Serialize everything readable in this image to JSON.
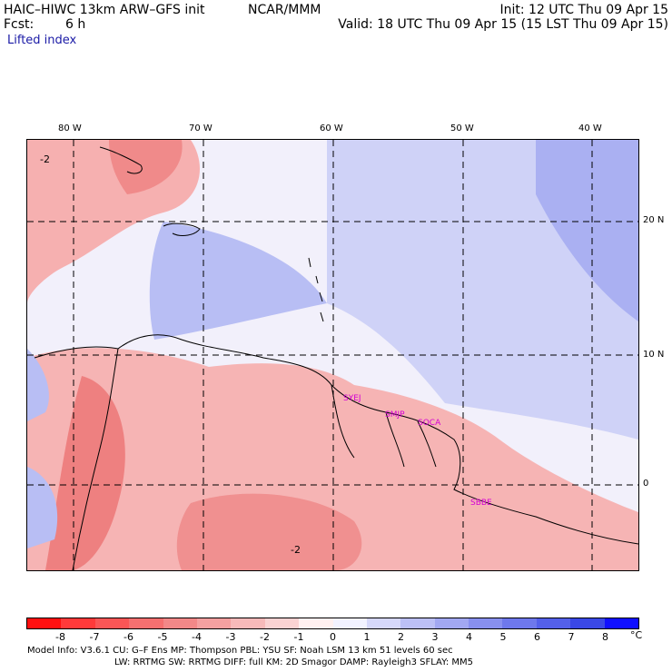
{
  "header": {
    "title": "HAIC–HIWC 13km ARW–GFS init",
    "org": "NCAR/MMM",
    "init": "Init: 12 UTC Thu 09 Apr 15",
    "fcst_label": "Fcst:",
    "fcst_value": "6 h",
    "valid": "Valid: 18 UTC Thu 09 Apr 15 (15 LST Thu 09 Apr 15)",
    "field": "Lifted index"
  },
  "map": {
    "lon_ticks": [
      "80 W",
      "70 W",
      "60 W",
      "50 W",
      "40 W"
    ],
    "lat_ticks": [
      "20 N",
      "10 N",
      "0"
    ],
    "stations": [
      "SYEJ",
      "SMJP",
      "SOCA",
      "SBBE"
    ],
    "contour_labels": [
      "-2",
      "-2"
    ],
    "colors": {
      "warm": "#f4a3a3",
      "cool": "#b7bdf4",
      "neutral": "#f2f0fb"
    }
  },
  "colorbar": {
    "labels": [
      "-8",
      "-7",
      "-6",
      "-5",
      "-4",
      "-3",
      "-2",
      "-1",
      "0",
      "1",
      "2",
      "3",
      "4",
      "5",
      "6",
      "7",
      "8"
    ],
    "unit": "°C",
    "colors": [
      "#ff1010",
      "#ff3a3a",
      "#fa5656",
      "#f57070",
      "#f28888",
      "#f4a0a0",
      "#f7baba",
      "#fad3d3",
      "#fff0f0",
      "#f2f2ff",
      "#d6d8fa",
      "#bcc0f6",
      "#a2a8f2",
      "#8890ef",
      "#6e78ec",
      "#5460ea",
      "#3a48e6",
      "#1010ff"
    ]
  },
  "footer": {
    "line1": "Model Info: V3.6.1    CU: G–F Ens  MP: Thompson     PBL: YSU      SF: Noah LSM     13 km    51 levels    60 sec",
    "line2": "LW: RRTMG    SW: RRTMG   DIFF: full    KM: 2D Smagor  DAMP: Rayleigh3   SFLAY: MM5"
  }
}
